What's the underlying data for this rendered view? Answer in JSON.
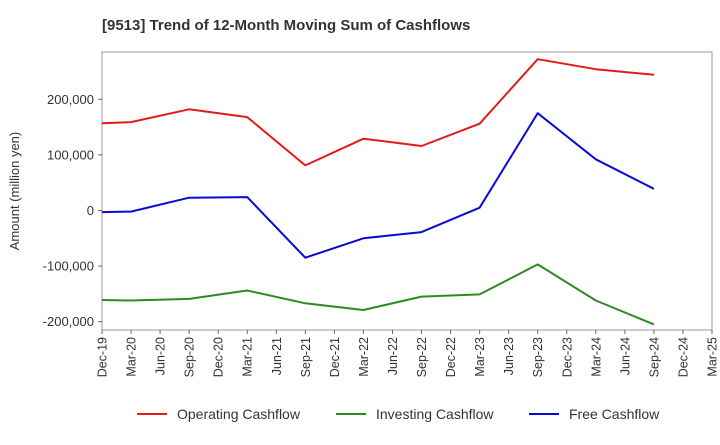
{
  "chart_data": {
    "type": "line",
    "title": "[9513]  Trend of 12-Month Moving Sum of Cashflows",
    "ylabel": "Amount (million yen)",
    "xlabel": "",
    "categories": [
      "Dec-19",
      "Mar-20",
      "Jun-20",
      "Sep-20",
      "Dec-20",
      "Mar-21",
      "Jun-21",
      "Sep-21",
      "Dec-21",
      "Mar-22",
      "Jun-22",
      "Sep-22",
      "Dec-22",
      "Mar-23",
      "Jun-23",
      "Sep-23",
      "Dec-23",
      "Mar-24",
      "Jun-24",
      "Sep-24",
      "Dec-24",
      "Mar-25"
    ],
    "ylim": [
      -215000,
      285000
    ],
    "yticks": [
      -200000,
      -100000,
      0,
      100000,
      200000
    ],
    "ytick_labels": [
      "-200,000",
      "-100,000",
      "0",
      "100,000",
      "200,000"
    ],
    "grid": true,
    "legend_position": "bottom",
    "series": [
      {
        "name": "Operating Cashflow",
        "color": "#e31a1c",
        "values": [
          157000,
          159000,
          null,
          182000,
          null,
          168000,
          null,
          81000,
          null,
          129000,
          null,
          116000,
          null,
          156000,
          null,
          272000,
          null,
          254000,
          null,
          244000,
          null,
          null
        ]
      },
      {
        "name": "Investing Cashflow",
        "color": "#2e8b22",
        "values": [
          -161000,
          -162000,
          null,
          -159000,
          null,
          -144000,
          null,
          -167000,
          null,
          -179000,
          null,
          -155000,
          null,
          -151000,
          null,
          -97000,
          null,
          -162000,
          null,
          -205000,
          null,
          null
        ]
      },
      {
        "name": "Free Cashflow",
        "color": "#0a0ad2",
        "values": [
          -3000,
          -2000,
          null,
          23000,
          null,
          24000,
          null,
          -85000,
          null,
          -50000,
          null,
          -39000,
          null,
          5000,
          null,
          175000,
          null,
          92000,
          null,
          39000,
          null,
          null
        ]
      }
    ]
  }
}
